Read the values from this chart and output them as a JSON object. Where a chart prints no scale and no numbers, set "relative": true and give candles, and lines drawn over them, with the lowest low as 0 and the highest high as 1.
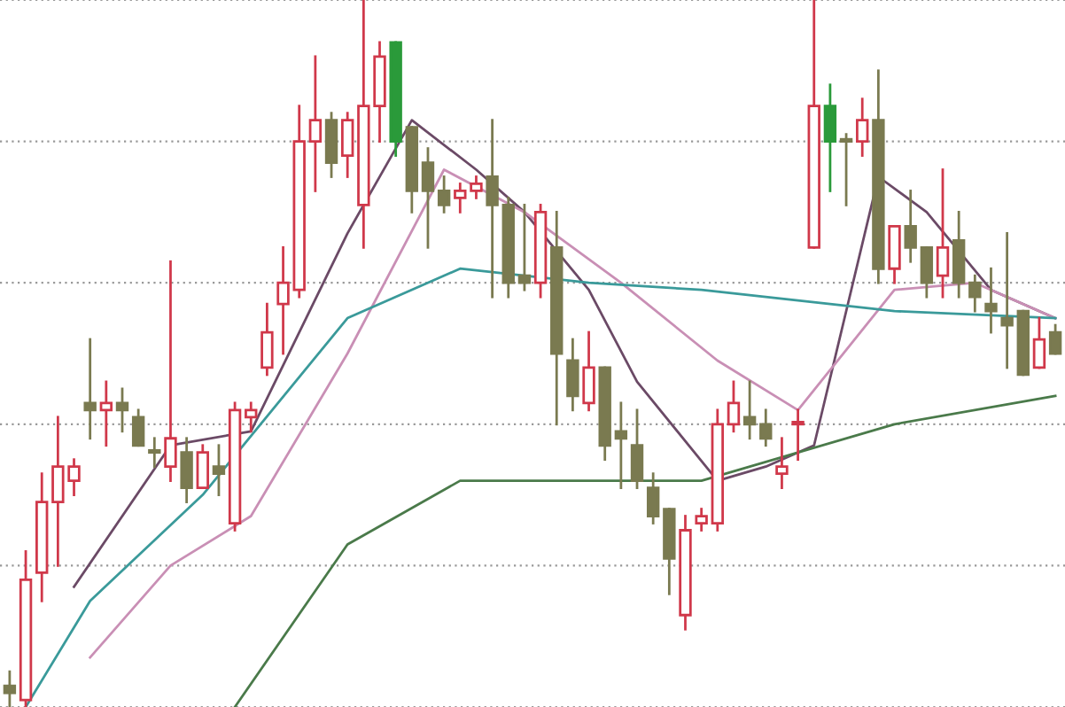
{
  "chart_data": {
    "type": "candlestick",
    "relative": true,
    "grid": "y",
    "categories": [
      null,
      null,
      null,
      null,
      null,
      null,
      null,
      null,
      null,
      null,
      null,
      null,
      null,
      null,
      null,
      null,
      null,
      null,
      null,
      null,
      null,
      null,
      null,
      null,
      null,
      null,
      null,
      null,
      null,
      null,
      null,
      null,
      null,
      null,
      null,
      null,
      null,
      null,
      null,
      null,
      null,
      null,
      null,
      null,
      null,
      null,
      null,
      null,
      null,
      null,
      null,
      null,
      null,
      null,
      null,
      null,
      null,
      null,
      null,
      null,
      null,
      null,
      null,
      null,
      null,
      null
    ],
    "ohlc": [
      [
        0.03,
        0.05,
        0.0,
        0.02
      ],
      [
        0.01,
        0.22,
        0.0,
        0.18
      ],
      [
        0.19,
        0.33,
        0.15,
        0.29
      ],
      [
        0.29,
        0.41,
        0.2,
        0.34
      ],
      [
        0.32,
        0.35,
        0.3,
        0.34
      ],
      [
        0.43,
        0.52,
        0.38,
        0.42
      ],
      [
        0.42,
        0.46,
        0.37,
        0.43
      ],
      [
        0.43,
        0.45,
        0.39,
        0.42
      ],
      [
        0.41,
        0.42,
        0.37,
        0.37
      ],
      [
        0.36,
        0.38,
        0.34,
        0.36
      ],
      [
        0.34,
        0.63,
        0.32,
        0.38
      ],
      [
        0.36,
        0.38,
        0.29,
        0.31
      ],
      [
        0.31,
        0.37,
        0.31,
        0.36
      ],
      [
        0.34,
        0.37,
        0.3,
        0.33
      ],
      [
        0.26,
        0.43,
        0.25,
        0.42
      ],
      [
        0.41,
        0.43,
        0.39,
        0.42
      ],
      [
        0.48,
        0.57,
        0.47,
        0.53
      ],
      [
        0.57,
        0.65,
        0.5,
        0.6
      ],
      [
        0.59,
        0.85,
        0.58,
        0.8
      ],
      [
        0.8,
        0.92,
        0.73,
        0.83
      ],
      [
        0.83,
        0.84,
        0.75,
        0.77
      ],
      [
        0.78,
        0.84,
        0.75,
        0.83
      ],
      [
        0.71,
        1,
        0.65,
        0.85
      ],
      [
        0.85,
        0.94,
        0.8,
        0.92
      ],
      [
        0.94,
        0.94,
        0.78,
        0.8
      ],
      [
        0.82,
        0.82,
        0.7,
        0.73
      ],
      [
        0.77,
        0.79,
        0.65,
        0.73
      ],
      [
        0.73,
        0.75,
        0.7,
        0.71
      ],
      [
        0.72,
        0.74,
        0.7,
        0.73
      ],
      [
        0.73,
        0.75,
        0.72,
        0.74
      ],
      [
        0.75,
        0.83,
        0.58,
        0.71
      ],
      [
        0.71,
        0.72,
        0.58,
        0.6
      ],
      [
        0.61,
        0.71,
        0.59,
        0.6
      ],
      [
        0.6,
        0.71,
        0.58,
        0.7
      ],
      [
        0.65,
        0.7,
        0.4,
        0.5
      ],
      [
        0.49,
        0.52,
        0.42,
        0.44
      ],
      [
        0.43,
        0.53,
        0.42,
        0.48
      ],
      [
        0.48,
        0.48,
        0.35,
        0.37
      ],
      [
        0.39,
        0.43,
        0.31,
        0.38
      ],
      [
        0.37,
        0.42,
        0.31,
        0.32
      ],
      [
        0.31,
        0.33,
        0.26,
        0.27
      ],
      [
        0.28,
        0.28,
        0.16,
        0.21
      ],
      [
        0.13,
        0.27,
        0.11,
        0.25
      ],
      [
        0.26,
        0.28,
        0.25,
        0.27
      ],
      [
        0.26,
        0.42,
        0.25,
        0.4
      ],
      [
        0.4,
        0.46,
        0.39,
        0.43
      ],
      [
        0.41,
        0.46,
        0.38,
        0.4
      ],
      [
        0.4,
        0.42,
        0.37,
        0.38
      ],
      [
        0.33,
        0.38,
        0.31,
        0.34
      ],
      [
        0.4,
        0.42,
        0.35,
        0.4
      ],
      [
        0.65,
        1,
        0.65,
        0.85
      ],
      [
        0.85,
        0.88,
        0.73,
        0.8
      ],
      [
        0.8,
        0.81,
        0.71,
        0.8
      ],
      [
        0.8,
        0.86,
        0.78,
        0.83
      ],
      [
        0.83,
        0.9,
        0.6,
        0.62
      ],
      [
        0.62,
        0.68,
        0.6,
        0.68
      ],
      [
        0.68,
        0.73,
        0.63,
        0.65
      ],
      [
        0.65,
        0.65,
        0.58,
        0.6
      ],
      [
        0.61,
        0.76,
        0.58,
        0.65
      ],
      [
        0.66,
        0.7,
        0.58,
        0.6
      ],
      [
        0.6,
        0.61,
        0.56,
        0.58
      ],
      [
        0.57,
        0.62,
        0.53,
        0.56
      ],
      [
        0.55,
        0.67,
        0.48,
        0.54
      ],
      [
        0.56,
        0.56,
        0.47,
        0.47
      ],
      [
        0.48,
        0.55,
        0.48,
        0.52
      ],
      [
        0.53,
        0.54,
        0.5,
        0.5
      ]
    ],
    "colors": [
      "#7a7a50",
      "#d0384a",
      "#d0384a",
      "#d0384a",
      "#d0384a",
      "#7a7a50",
      "#d0384a",
      "#7a7a50",
      "#7a7a50",
      "#7a7a50",
      "#d0384a",
      "#7a7a50",
      "#d0384a",
      "#7a7a50",
      "#d0384a",
      "#d0384a",
      "#d0384a",
      "#d0384a",
      "#d0384a",
      "#d0384a",
      "#7a7a50",
      "#d0384a",
      "#d0384a",
      "#d0384a",
      "#2a9a3a",
      "#7a7a50",
      "#7a7a50",
      "#7a7a50",
      "#d0384a",
      "#d0384a",
      "#7a7a50",
      "#7a7a50",
      "#7a7a50",
      "#d0384a",
      "#7a7a50",
      "#7a7a50",
      "#d0384a",
      "#7a7a50",
      "#7a7a50",
      "#7a7a50",
      "#7a7a50",
      "#7a7a50",
      "#d0384a",
      "#d0384a",
      "#d0384a",
      "#d0384a",
      "#7a7a50",
      "#7a7a50",
      "#d0384a",
      "#d0384a",
      "#d0384a",
      "#2a9a3a",
      "#7a7a50",
      "#d0384a",
      "#7a7a50",
      "#d0384a",
      "#7a7a50",
      "#7a7a50",
      "#d0384a",
      "#7a7a50",
      "#7a7a50",
      "#7a7a50",
      "#7a7a50",
      "#7a7a50",
      "#d0384a",
      "#7a7a50"
    ],
    "series": [
      {
        "type": "line",
        "color": "#6b4a66",
        "values": [
          null,
          null,
          null,
          null,
          0.17,
          null,
          null,
          null,
          null,
          null,
          0.37,
          null,
          null,
          null,
          null,
          0.39,
          null,
          null,
          null,
          null,
          null,
          0.67,
          null,
          null,
          null,
          0.83,
          null,
          null,
          null,
          0.76,
          null,
          null,
          0.7,
          null,
          null,
          null,
          0.59,
          null,
          null,
          0.46,
          null,
          null,
          null,
          null,
          0.32,
          null,
          null,
          0.34,
          null,
          null,
          0.37,
          null,
          null,
          null,
          0.75,
          null,
          null,
          0.7,
          null,
          null,
          null,
          0.59,
          null,
          null,
          null,
          0.55
        ]
      },
      {
        "type": "line",
        "color": "#c98fb5",
        "values": [
          null,
          null,
          null,
          null,
          null,
          0.07,
          null,
          null,
          null,
          null,
          0.2,
          null,
          null,
          null,
          null,
          0.27,
          null,
          null,
          null,
          null,
          null,
          0.5,
          null,
          null,
          null,
          null,
          null,
          0.76,
          null,
          null,
          null,
          null,
          0.7,
          null,
          null,
          null,
          null,
          null,
          0.6,
          null,
          null,
          null,
          null,
          null,
          0.49,
          null,
          null,
          null,
          null,
          0.42,
          null,
          null,
          null,
          null,
          null,
          0.59,
          null,
          null,
          null,
          null,
          0.6,
          null,
          null,
          null,
          null,
          0.55
        ]
      },
      {
        "type": "line",
        "color": "#3a9a9a",
        "values": [
          null,
          0.0,
          null,
          null,
          null,
          0.15,
          null,
          null,
          null,
          null,
          null,
          null,
          0.3,
          null,
          null,
          null,
          null,
          null,
          null,
          null,
          null,
          0.55,
          null,
          null,
          null,
          null,
          null,
          null,
          0.62,
          null,
          null,
          null,
          null,
          null,
          null,
          null,
          0.6,
          null,
          null,
          null,
          null,
          null,
          null,
          0.59,
          null,
          null,
          null,
          null,
          null,
          null,
          null,
          null,
          null,
          null,
          null,
          0.56,
          null,
          null,
          null,
          null,
          null,
          null,
          null,
          null,
          null,
          0.55
        ]
      },
      {
        "type": "line",
        "color": "#4a7a4a",
        "values": [
          null,
          null,
          null,
          null,
          null,
          null,
          null,
          null,
          null,
          null,
          null,
          null,
          null,
          null,
          0.0,
          null,
          null,
          null,
          null,
          null,
          null,
          0.23,
          null,
          null,
          null,
          null,
          null,
          null,
          0.32,
          null,
          null,
          null,
          null,
          null,
          null,
          null,
          0.32,
          null,
          null,
          null,
          null,
          null,
          null,
          0.32,
          null,
          null,
          null,
          null,
          null,
          null,
          null,
          null,
          null,
          null,
          null,
          0.4,
          null,
          null,
          null,
          null,
          null,
          null,
          null,
          null,
          null,
          0.44
        ]
      }
    ]
  }
}
